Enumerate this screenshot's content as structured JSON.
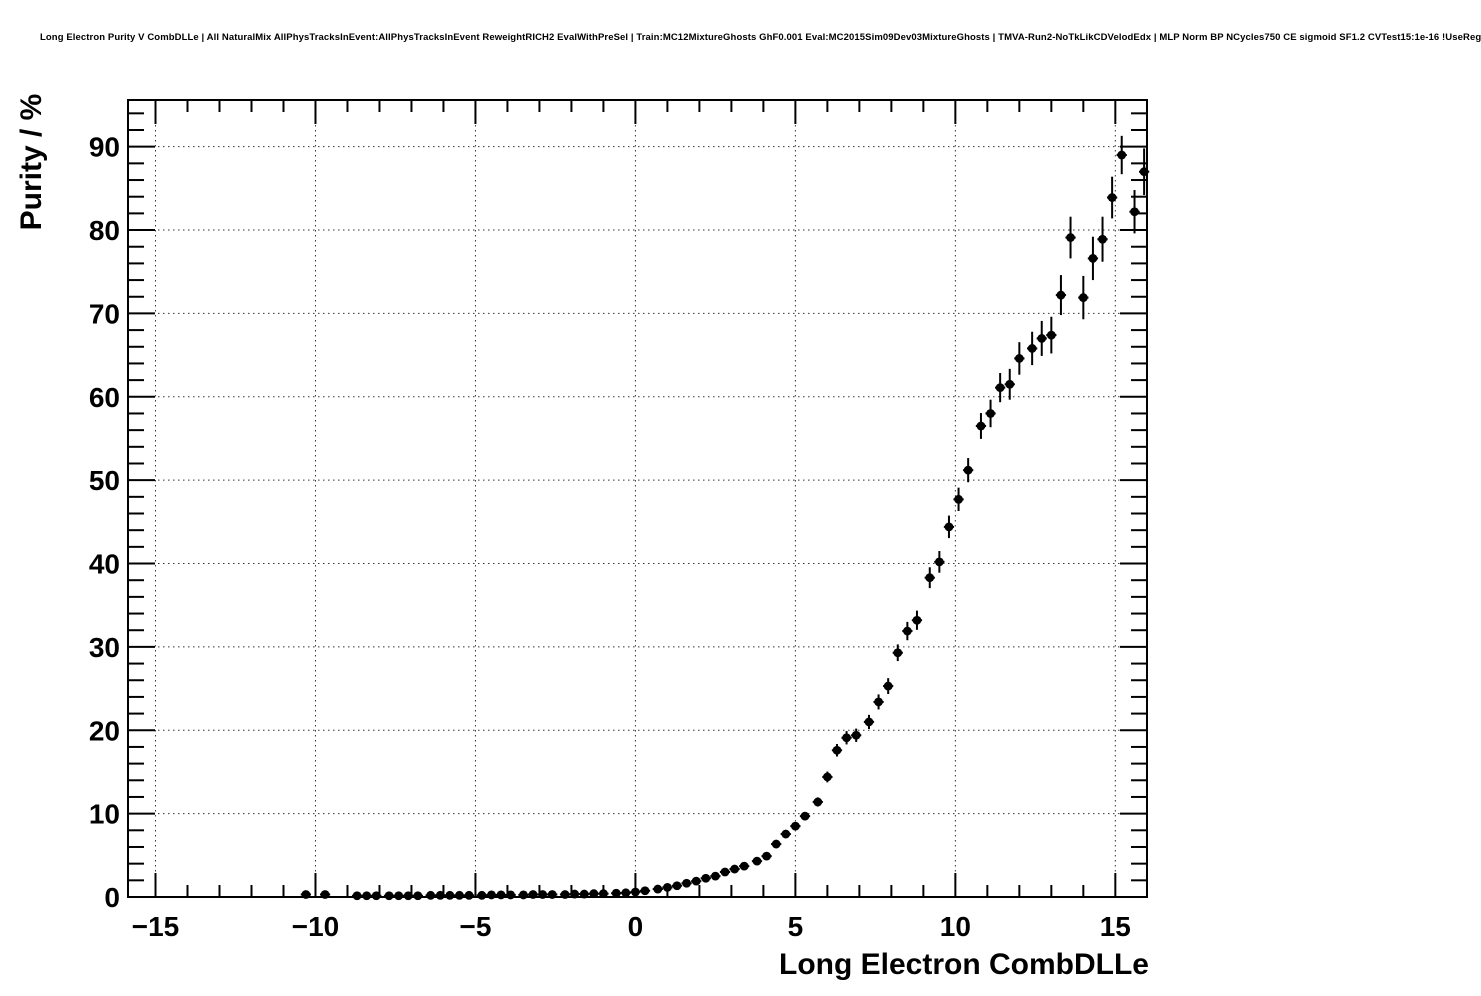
{
  "header": {
    "title": "Long Electron Purity V CombDLLe | All NaturalMix AllPhysTracksInEvent:AllPhysTracksInEvent ReweightRICH2 EvalWithPreSel | Train:MC12MixtureGhosts GhF0.001 Eval:MC2015Sim09Dev03MixtureGhosts | TMVA-Run2-NoTkLikCDVelodEdx | MLP Norm BP NCycles750 CE sigmoid SF1.2 CVTest15:1e-16 !UseReg"
  },
  "chart_data": {
    "type": "scatter",
    "title": "Long Electron Purity V CombDLLe",
    "xlabel": "Long Electron CombDLLe",
    "ylabel": "Purity / %",
    "xlim": [
      -15.86,
      15.99
    ],
    "ylim": [
      0,
      95.6
    ],
    "grid": true,
    "legend_position": "none",
    "marker": "filled-circle",
    "marker_color": "#000000",
    "x_major_ticks": [
      -15,
      -10,
      -5,
      0,
      5,
      10,
      15
    ],
    "x_tick_labels": [
      "−15",
      "−10",
      "−5",
      "0",
      "5",
      "10",
      "15"
    ],
    "x_minor_step": 1,
    "y_major_ticks": [
      0,
      10,
      20,
      30,
      40,
      50,
      60,
      70,
      80,
      90
    ],
    "y_tick_labels": [
      "0",
      "10",
      "20",
      "30",
      "40",
      "50",
      "60",
      "70",
      "80",
      "90"
    ],
    "y_minor_step": 2,
    "xerr": 0.16,
    "x": [
      -10.3,
      -9.7,
      -8.7,
      -8.4,
      -8.1,
      -7.7,
      -7.4,
      -7.1,
      -6.8,
      -6.4,
      -6.1,
      -5.8,
      -5.5,
      -5.2,
      -4.8,
      -4.5,
      -4.2,
      -3.9,
      -3.5,
      -3.2,
      -2.9,
      -2.6,
      -2.2,
      -1.9,
      -1.6,
      -1.3,
      -1.0,
      -0.6,
      -0.3,
      0.0,
      0.3,
      0.7,
      1.0,
      1.3,
      1.6,
      1.9,
      2.2,
      2.5,
      2.8,
      3.1,
      3.4,
      3.8,
      4.1,
      4.4,
      4.7,
      5.0,
      5.3,
      5.7,
      6.0,
      6.3,
      6.6,
      6.9,
      7.3,
      7.6,
      7.9,
      8.2,
      8.5,
      8.8,
      9.2,
      9.5,
      9.8,
      10.1,
      10.4,
      10.8,
      11.1,
      11.4,
      11.7,
      12.0,
      12.4,
      12.7,
      13.0,
      13.3,
      13.6,
      14.0,
      14.3,
      14.6,
      14.9,
      15.2,
      15.6,
      15.9
    ],
    "y": [
      0.3,
      0.3,
      0.15,
      0.15,
      0.15,
      0.15,
      0.15,
      0.15,
      0.15,
      0.2,
      0.2,
      0.2,
      0.2,
      0.2,
      0.2,
      0.25,
      0.25,
      0.25,
      0.25,
      0.3,
      0.3,
      0.3,
      0.3,
      0.35,
      0.35,
      0.4,
      0.4,
      0.45,
      0.5,
      0.6,
      0.75,
      0.95,
      1.15,
      1.35,
      1.65,
      1.9,
      2.25,
      2.5,
      3.0,
      3.35,
      3.7,
      4.3,
      4.9,
      6.35,
      7.55,
      8.5,
      9.7,
      11.4,
      14.4,
      17.6,
      19.1,
      19.4,
      21.0,
      23.4,
      25.3,
      29.3,
      31.9,
      33.2,
      38.3,
      40.2,
      44.4,
      47.7,
      51.2,
      56.5,
      58.0,
      61.1,
      61.5,
      64.6,
      65.8,
      67.0,
      67.4,
      72.2,
      79.1,
      71.9,
      76.6,
      78.9,
      83.9,
      89.0,
      82.2,
      87.0
    ],
    "yerr": [
      0.1,
      0.1,
      0.08,
      0.08,
      0.08,
      0.08,
      0.08,
      0.08,
      0.08,
      0.08,
      0.08,
      0.08,
      0.08,
      0.08,
      0.08,
      0.08,
      0.08,
      0.08,
      0.08,
      0.08,
      0.08,
      0.08,
      0.08,
      0.08,
      0.08,
      0.08,
      0.08,
      0.08,
      0.08,
      0.1,
      0.1,
      0.12,
      0.13,
      0.14,
      0.15,
      0.17,
      0.18,
      0.2,
      0.22,
      0.24,
      0.26,
      0.28,
      0.32,
      0.38,
      0.42,
      0.45,
      0.5,
      0.55,
      0.65,
      0.75,
      0.8,
      0.8,
      0.85,
      0.9,
      0.95,
      1.0,
      1.1,
      1.15,
      1.25,
      1.3,
      1.35,
      1.4,
      1.45,
      1.55,
      1.65,
      1.75,
      1.85,
      1.95,
      2.0,
      2.1,
      2.2,
      2.4,
      2.5,
      2.6,
      2.6,
      2.7,
      2.5,
      2.3,
      2.6,
      2.8
    ]
  }
}
